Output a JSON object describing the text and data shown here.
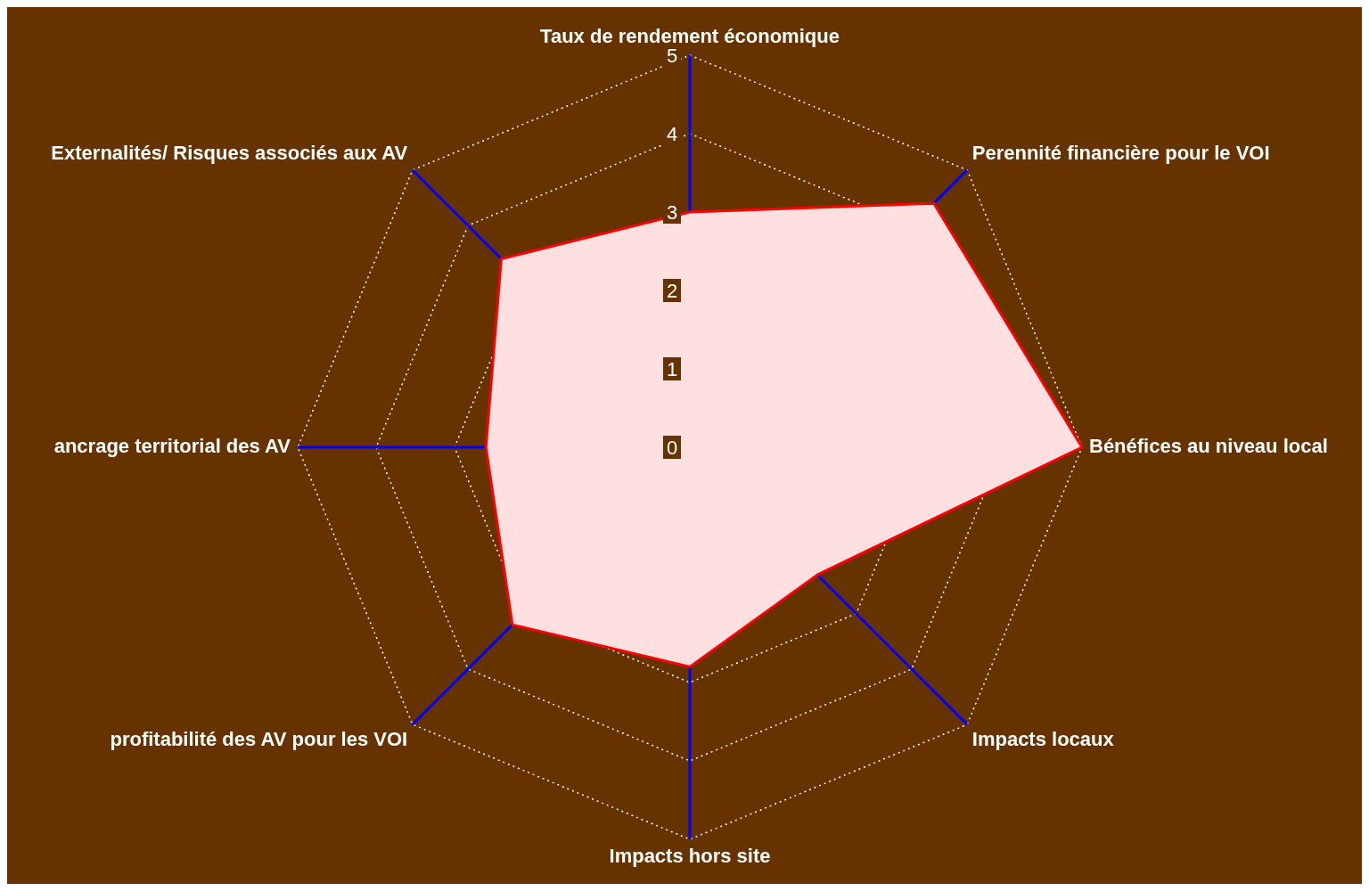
{
  "chart_data": {
    "type": "radar",
    "categories": [
      "Taux de rendement économique",
      "Perennité financière pour le VOI",
      "Bénéfices au niveau local",
      "Impacts locaux",
      "Impacts hors site",
      "profitabilité des AV pour les VOI",
      "ancrage territorial des AV",
      "Externalités/ Risques associés aux AV"
    ],
    "series": [
      {
        "color": "#ff0000",
        "values": [
          3,
          4.4,
          5,
          2.3,
          2.8,
          3.2,
          2.6,
          3.4
        ]
      }
    ],
    "ylim": [
      0,
      5
    ],
    "yticks": [
      0,
      1,
      2,
      3,
      4,
      5
    ],
    "grid": true,
    "marker": "none"
  }
}
